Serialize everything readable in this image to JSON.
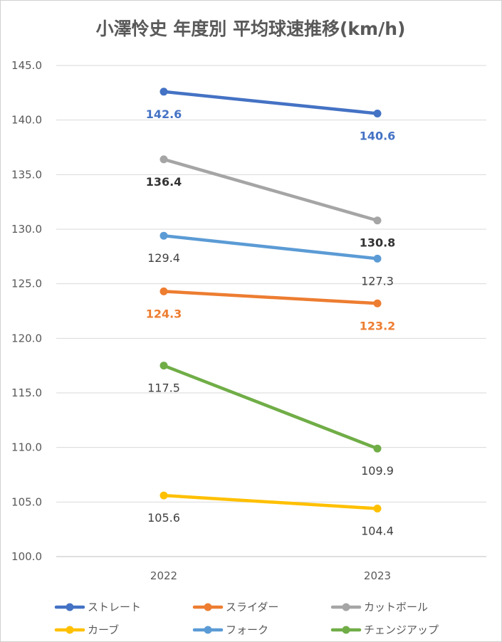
{
  "chart_data": {
    "type": "line",
    "title": "小澤怜史 年度別 平均球速推移(km/h)",
    "xlabel": "",
    "ylabel": "",
    "categories": [
      "2022",
      "2023"
    ],
    "ylim": [
      100,
      145
    ],
    "yticks": [
      "100.0",
      "105.0",
      "110.0",
      "115.0",
      "120.0",
      "125.0",
      "130.0",
      "135.0",
      "140.0",
      "145.0"
    ],
    "grid": true,
    "legend": "bottom",
    "series": [
      {
        "name": "ストレート",
        "values": [
          142.6,
          140.6
        ],
        "labels": [
          "142.6",
          "140.6"
        ],
        "color": "#4472C4",
        "label_color": "#4472C4",
        "label_bold": true
      },
      {
        "name": "スライダー",
        "values": [
          124.3,
          123.2
        ],
        "labels": [
          "124.3",
          "123.2"
        ],
        "color": "#ED7D31",
        "label_color": "#ED7D31",
        "label_bold": true
      },
      {
        "name": "カットボール",
        "values": [
          136.4,
          130.8
        ],
        "labels": [
          "136.4",
          "130.8"
        ],
        "color": "#A5A5A5",
        "label_color": "#333333",
        "label_bold": true
      },
      {
        "name": "カーブ",
        "values": [
          105.6,
          104.4
        ],
        "labels": [
          "105.6",
          "104.4"
        ],
        "color": "#FFC000",
        "label_color": "#404040",
        "label_bold": false
      },
      {
        "name": "フォーク",
        "values": [
          129.4,
          127.3
        ],
        "labels": [
          "129.4",
          "127.3"
        ],
        "color": "#5B9BD5",
        "label_color": "#404040",
        "label_bold": false
      },
      {
        "name": "チェンジアップ",
        "values": [
          117.5,
          109.9
        ],
        "labels": [
          "117.5",
          "109.9"
        ],
        "color": "#70AD47",
        "label_color": "#404040",
        "label_bold": false
      }
    ]
  }
}
